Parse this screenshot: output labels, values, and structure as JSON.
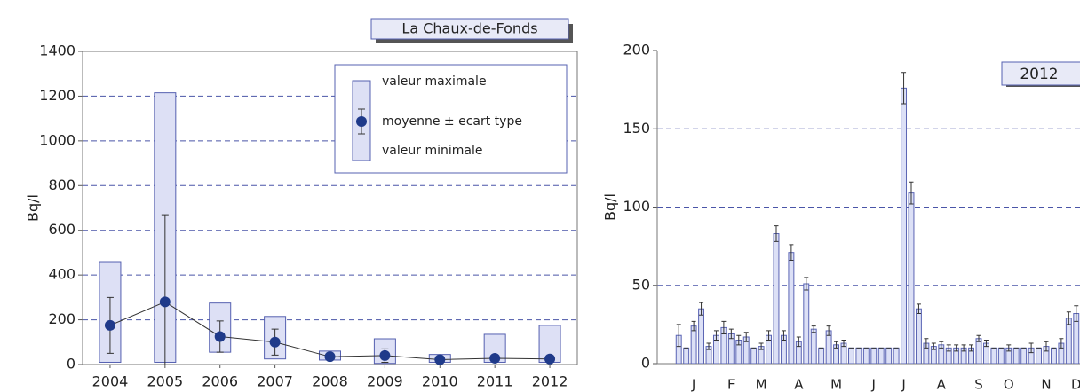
{
  "chart_data": [
    {
      "type": "range_box",
      "title": "La Chaux-de-Fonds",
      "y_label": "Bq/l",
      "categories": [
        "2004",
        "2005",
        "2006",
        "2007",
        "2008",
        "2009",
        "2010",
        "2011",
        "2012"
      ],
      "min": [
        10,
        10,
        55,
        25,
        20,
        5,
        10,
        10,
        10
      ],
      "max": [
        460,
        1215,
        275,
        215,
        60,
        115,
        45,
        135,
        175
      ],
      "mean": [
        175,
        280,
        125,
        100,
        35,
        40,
        22,
        28,
        25
      ],
      "sd": [
        125,
        390,
        70,
        58,
        5,
        30,
        5,
        5,
        15
      ],
      "legend": [
        "valeur maximale",
        "moyenne ± ecart type",
        "valeur minimale"
      ],
      "ylim": [
        0,
        1400
      ],
      "yticks": [
        0,
        200,
        400,
        600,
        800,
        1000,
        1200,
        1400
      ],
      "grid": true,
      "color": "#5560b0",
      "fill": "#dde0f5",
      "mean_color": "#1f3a8a"
    },
    {
      "type": "bar_error",
      "title": "2012",
      "y_label": "Bq/l",
      "categories": [
        null,
        null,
        "J",
        null,
        null,
        null,
        null,
        "F",
        null,
        null,
        null,
        "M",
        null,
        null,
        null,
        null,
        "A",
        null,
        null,
        null,
        null,
        "M",
        null,
        null,
        null,
        null,
        "J",
        null,
        null,
        null,
        "J",
        null,
        null,
        null,
        null,
        "A",
        null,
        null,
        null,
        null,
        "S",
        null,
        null,
        null,
        "O",
        null,
        null,
        null,
        null,
        "N",
        null,
        null,
        null,
        "D"
      ],
      "values": [
        18,
        10,
        24,
        35,
        11,
        18,
        23,
        19,
        15,
        17,
        10,
        11,
        18,
        83,
        18,
        71,
        14,
        51,
        22,
        10,
        21,
        12,
        13,
        10,
        10,
        10,
        10,
        10,
        10,
        10,
        176,
        109,
        35,
        13,
        11,
        12,
        10,
        10,
        10,
        10,
        16,
        13,
        10,
        10,
        10,
        10,
        10,
        10,
        10,
        11,
        10,
        13,
        29,
        32
      ],
      "errors": [
        7,
        0,
        3,
        4,
        2,
        3,
        4,
        3,
        3,
        3,
        0,
        2,
        3,
        5,
        3,
        5,
        3,
        4,
        2,
        0,
        3,
        2,
        2,
        0,
        0,
        0,
        0,
        0,
        0,
        0,
        10,
        7,
        3,
        3,
        2,
        2,
        2,
        2,
        2,
        2,
        2,
        2,
        0,
        0,
        2,
        0,
        0,
        3,
        0,
        3,
        0,
        3,
        4,
        5
      ],
      "ylim": [
        0,
        200
      ],
      "yticks": [
        0,
        50,
        100,
        150,
        200
      ],
      "grid": true,
      "color": "#5a64b4",
      "fill": "#dce0f6"
    }
  ]
}
